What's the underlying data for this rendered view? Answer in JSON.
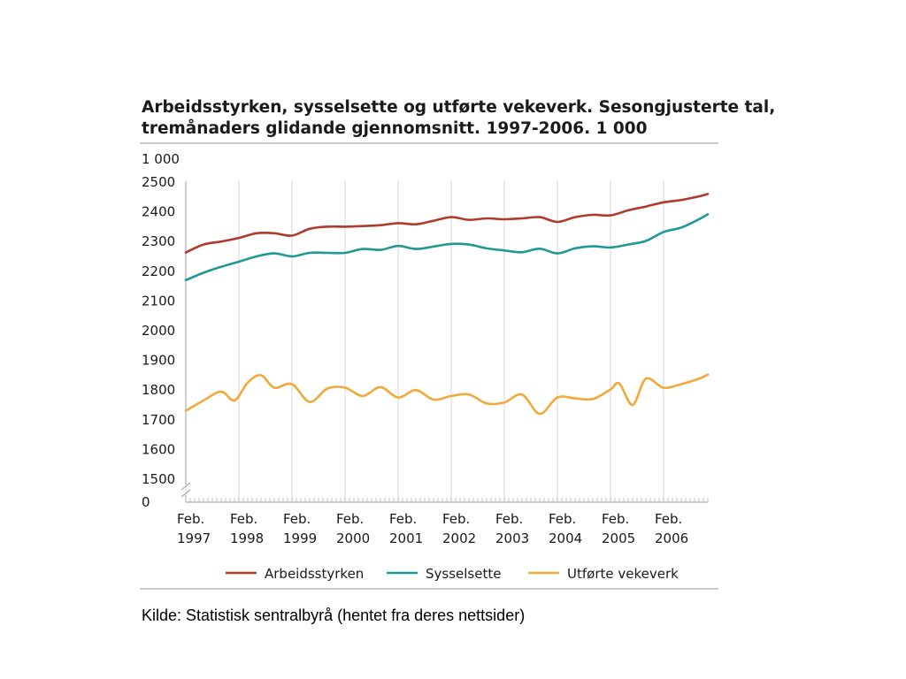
{
  "chart_data": {
    "type": "line",
    "title": [
      "Arbeidsstyrken, sysselsette og utførte vekeverk. Sesongjusterte tal,",
      "tremånaders glidande gjennomsnitt. 1997-2006. 1 000"
    ],
    "unit_label": "1 000",
    "xlabel": "",
    "ylabel": "",
    "ylim": [
      1500,
      2500
    ],
    "y_break": true,
    "y_ticks": [
      "2500",
      "2400",
      "2300",
      "2200",
      "2100",
      "2000",
      "1900",
      "1800",
      "1700",
      "1600",
      "1500",
      "0"
    ],
    "x_ticks": [
      {
        "month": "Feb.",
        "year": "1997"
      },
      {
        "month": "Feb.",
        "year": "1998"
      },
      {
        "month": "Feb.",
        "year": "1999"
      },
      {
        "month": "Feb.",
        "year": "2000"
      },
      {
        "month": "Feb.",
        "year": "2001"
      },
      {
        "month": "Feb.",
        "year": "2002"
      },
      {
        "month": "Feb.",
        "year": "2003"
      },
      {
        "month": "Feb.",
        "year": "2004"
      },
      {
        "month": "Feb.",
        "year": "2005"
      },
      {
        "month": "Feb.",
        "year": "2006"
      }
    ],
    "x_start": "1997-02",
    "x_end": "2006-12",
    "grid": "vertical",
    "legend_position": "bottom",
    "series": [
      {
        "name": "Arbeidsstyrken",
        "color": "#b03a2e",
        "x": [
          "1997-02",
          "1997-06",
          "1997-10",
          "1998-02",
          "1998-06",
          "1998-10",
          "1999-02",
          "1999-06",
          "1999-10",
          "2000-02",
          "2000-06",
          "2000-10",
          "2001-02",
          "2001-06",
          "2001-10",
          "2002-02",
          "2002-06",
          "2002-10",
          "2003-02",
          "2003-06",
          "2003-10",
          "2004-02",
          "2004-06",
          "2004-10",
          "2005-02",
          "2005-06",
          "2005-10",
          "2006-02",
          "2006-06",
          "2006-10",
          "2006-12"
        ],
        "values": [
          2263,
          2290,
          2300,
          2312,
          2328,
          2328,
          2320,
          2343,
          2350,
          2350,
          2352,
          2355,
          2362,
          2358,
          2370,
          2382,
          2373,
          2378,
          2375,
          2378,
          2382,
          2366,
          2382,
          2390,
          2388,
          2405,
          2418,
          2432,
          2440,
          2452,
          2460
        ]
      },
      {
        "name": "Sysselsette",
        "color": "#1f9995",
        "x": [
          "1997-02",
          "1997-06",
          "1997-10",
          "1998-02",
          "1998-06",
          "1998-10",
          "1999-02",
          "1999-06",
          "1999-10",
          "2000-02",
          "2000-06",
          "2000-10",
          "2001-02",
          "2001-06",
          "2001-10",
          "2002-02",
          "2002-06",
          "2002-10",
          "2003-02",
          "2003-06",
          "2003-10",
          "2004-02",
          "2004-06",
          "2004-10",
          "2005-02",
          "2005-06",
          "2005-10",
          "2006-02",
          "2006-06",
          "2006-10",
          "2006-12"
        ],
        "values": [
          2170,
          2195,
          2215,
          2232,
          2250,
          2260,
          2250,
          2262,
          2262,
          2262,
          2275,
          2272,
          2285,
          2275,
          2283,
          2292,
          2290,
          2277,
          2270,
          2264,
          2276,
          2260,
          2277,
          2284,
          2280,
          2290,
          2302,
          2332,
          2347,
          2375,
          2392
        ]
      },
      {
        "name": "Utførte vekeverk",
        "color": "#f2a93b",
        "x": [
          "1997-02",
          "1997-06",
          "1997-10",
          "1998-01",
          "1998-04",
          "1998-07",
          "1998-10",
          "1999-02",
          "1999-06",
          "1999-10",
          "2000-02",
          "2000-06",
          "2000-10",
          "2001-02",
          "2001-06",
          "2001-10",
          "2002-02",
          "2002-06",
          "2002-10",
          "2003-02",
          "2003-06",
          "2003-10",
          "2004-02",
          "2004-06",
          "2004-10",
          "2005-02",
          "2005-04",
          "2005-07",
          "2005-10",
          "2006-02",
          "2006-06",
          "2006-10",
          "2006-12"
        ],
        "values": [
          1730,
          1765,
          1795,
          1765,
          1825,
          1850,
          1808,
          1820,
          1760,
          1805,
          1808,
          1780,
          1810,
          1775,
          1800,
          1768,
          1780,
          1785,
          1755,
          1758,
          1785,
          1720,
          1775,
          1772,
          1770,
          1802,
          1822,
          1750,
          1838,
          1808,
          1820,
          1838,
          1852
        ]
      }
    ]
  },
  "source": "Kilde: Statistisk sentralbyrå (hentet fra deres nettsider)"
}
